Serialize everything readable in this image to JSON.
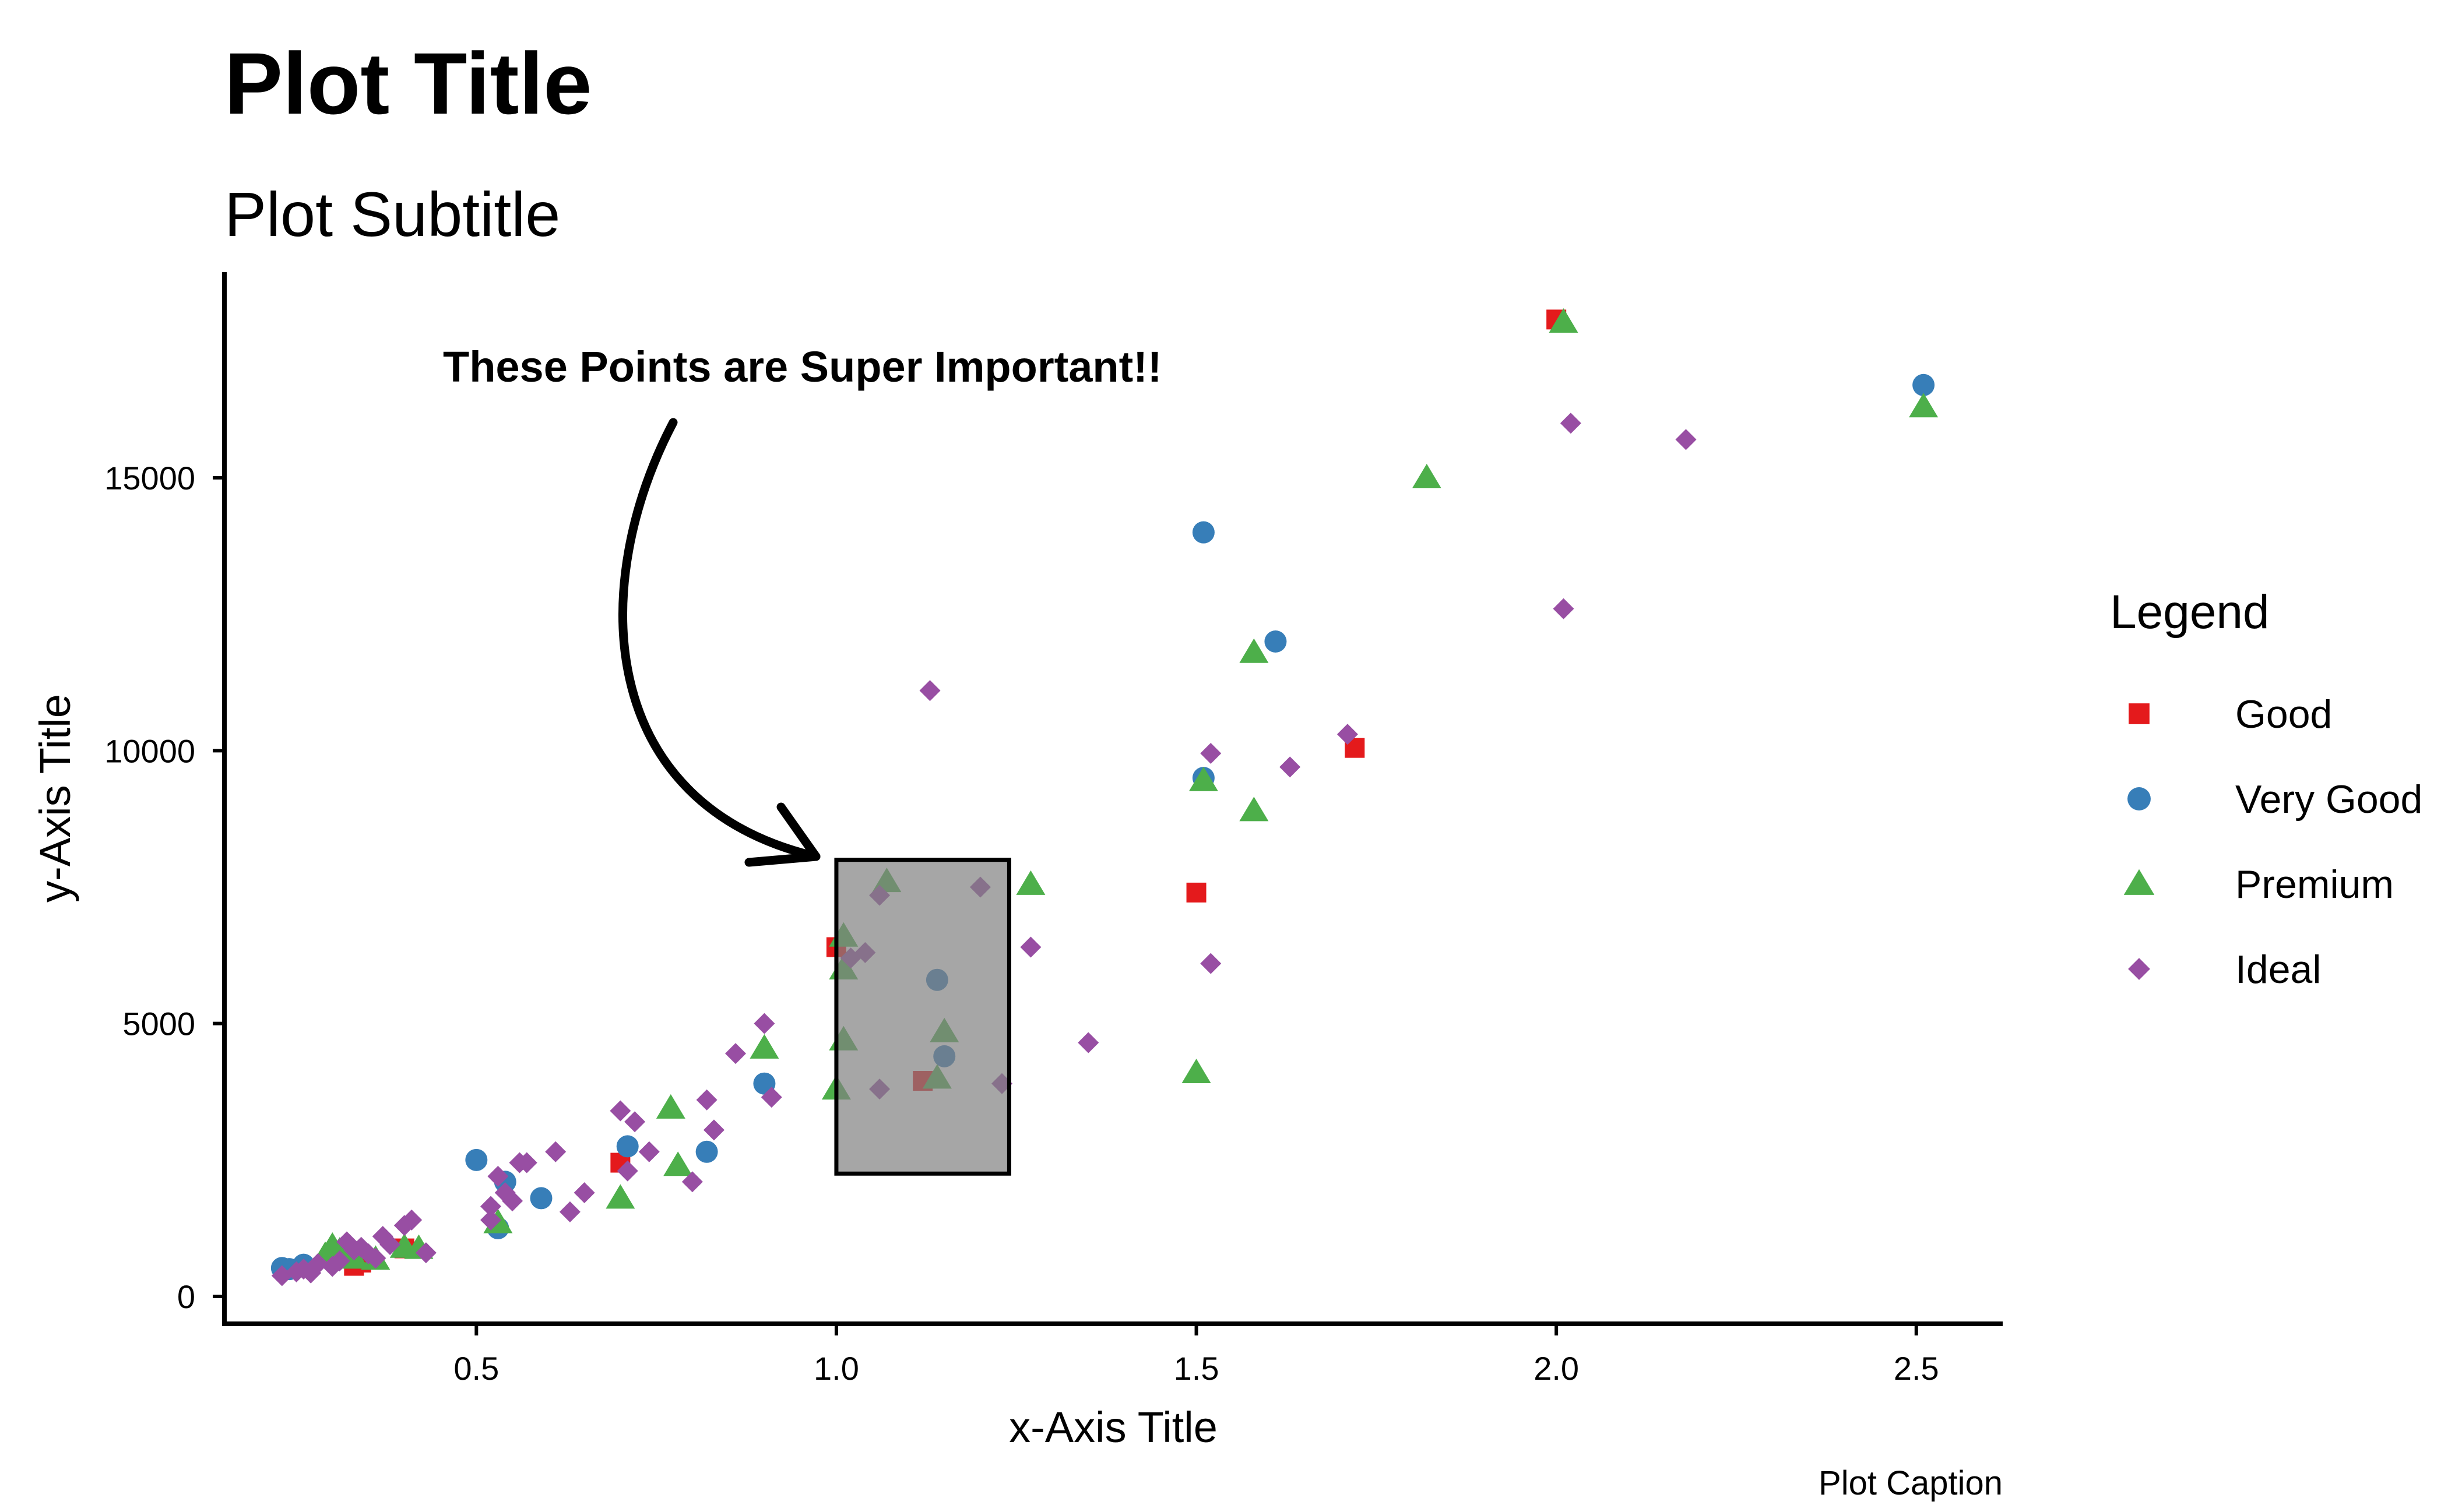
{
  "chart_data": {
    "type": "scatter",
    "title": "Plot Title",
    "subtitle": "Plot Subtitle",
    "xlabel": "x-Axis Title",
    "ylabel": "y-Axis Title",
    "caption": "Plot Caption",
    "xlim": [
      0.15,
      2.62
    ],
    "ylim": [
      -520,
      18600
    ],
    "x_ticks": [
      0.5,
      1.0,
      1.5,
      2.0,
      2.5
    ],
    "x_tick_labels": [
      "0.5",
      "1.0",
      "1.5",
      "2.0",
      "2.5"
    ],
    "y_ticks": [
      0,
      5000,
      10000,
      15000
    ],
    "y_tick_labels": [
      "0",
      "5000",
      "10000",
      "15000"
    ],
    "grid": false,
    "legend": {
      "title": "Legend",
      "position": "right"
    },
    "annotation": {
      "text": "These Points are Super Important!!",
      "highlight_box": {
        "x": [
          1.0,
          1.24
        ],
        "y": [
          2250,
          8000
        ]
      }
    },
    "series": [
      {
        "name": "Good",
        "color": "#E41A1C",
        "shape": "square",
        "points": [
          [
            0.33,
            560
          ],
          [
            0.34,
            620
          ],
          [
            0.4,
            880
          ],
          [
            0.7,
            2450
          ],
          [
            1.0,
            6400
          ],
          [
            1.12,
            3950
          ],
          [
            1.5,
            7400
          ],
          [
            1.72,
            10050
          ],
          [
            2.0,
            17900
          ]
        ]
      },
      {
        "name": "Very Good",
        "color": "#377EB8",
        "shape": "circle",
        "points": [
          [
            0.23,
            520
          ],
          [
            0.24,
            500
          ],
          [
            0.26,
            580
          ],
          [
            0.5,
            2500
          ],
          [
            0.53,
            1250
          ],
          [
            0.54,
            2100
          ],
          [
            0.59,
            1800
          ],
          [
            0.71,
            2750
          ],
          [
            0.82,
            2650
          ],
          [
            0.9,
            3900
          ],
          [
            1.14,
            5800
          ],
          [
            1.15,
            4400
          ],
          [
            1.51,
            14000
          ],
          [
            1.51,
            9500
          ],
          [
            1.61,
            12000
          ],
          [
            2.51,
            16700
          ]
        ]
      },
      {
        "name": "Premium",
        "color": "#4DAF4A",
        "shape": "triangle",
        "points": [
          [
            0.29,
            750
          ],
          [
            0.3,
            920
          ],
          [
            0.31,
            830
          ],
          [
            0.33,
            700
          ],
          [
            0.36,
            680
          ],
          [
            0.4,
            900
          ],
          [
            0.42,
            880
          ],
          [
            0.53,
            1350
          ],
          [
            0.7,
            1800
          ],
          [
            0.77,
            3450
          ],
          [
            0.78,
            2400
          ],
          [
            0.9,
            4550
          ],
          [
            1.0,
            3800
          ],
          [
            1.01,
            4700
          ],
          [
            1.01,
            6000
          ],
          [
            1.01,
            6600
          ],
          [
            1.07,
            7600
          ],
          [
            1.14,
            4000
          ],
          [
            1.15,
            4850
          ],
          [
            1.27,
            7550
          ],
          [
            1.5,
            4100
          ],
          [
            1.51,
            9450
          ],
          [
            1.58,
            11800
          ],
          [
            1.58,
            8900
          ],
          [
            1.82,
            15000
          ],
          [
            2.01,
            17850
          ],
          [
            2.51,
            16300
          ]
        ]
      },
      {
        "name": "Ideal",
        "color": "#984EA3",
        "shape": "diamond",
        "points": [
          [
            0.23,
            380
          ],
          [
            0.25,
            450
          ],
          [
            0.26,
            500
          ],
          [
            0.27,
            430
          ],
          [
            0.28,
            600
          ],
          [
            0.3,
            550
          ],
          [
            0.31,
            650
          ],
          [
            0.32,
            1000
          ],
          [
            0.33,
            850
          ],
          [
            0.34,
            900
          ],
          [
            0.35,
            780
          ],
          [
            0.36,
            700
          ],
          [
            0.37,
            1100
          ],
          [
            0.38,
            950
          ],
          [
            0.4,
            1300
          ],
          [
            0.41,
            1400
          ],
          [
            0.43,
            800
          ],
          [
            0.52,
            1650
          ],
          [
            0.52,
            1400
          ],
          [
            0.53,
            2200
          ],
          [
            0.54,
            1900
          ],
          [
            0.55,
            1750
          ],
          [
            0.56,
            2450
          ],
          [
            0.57,
            2450
          ],
          [
            0.61,
            2650
          ],
          [
            0.63,
            1550
          ],
          [
            0.65,
            1900
          ],
          [
            0.7,
            3400
          ],
          [
            0.71,
            2300
          ],
          [
            0.72,
            3200
          ],
          [
            0.74,
            2650
          ],
          [
            0.8,
            2100
          ],
          [
            0.82,
            3600
          ],
          [
            0.83,
            3050
          ],
          [
            0.86,
            4450
          ],
          [
            0.9,
            5000
          ],
          [
            0.91,
            3650
          ],
          [
            1.02,
            6200
          ],
          [
            1.04,
            6300
          ],
          [
            1.06,
            3800
          ],
          [
            1.06,
            7350
          ],
          [
            1.2,
            7500
          ],
          [
            1.23,
            3900
          ],
          [
            1.27,
            6400
          ],
          [
            1.35,
            4650
          ],
          [
            1.13,
            11100
          ],
          [
            1.52,
            9950
          ],
          [
            1.52,
            6100
          ],
          [
            1.63,
            9700
          ],
          [
            1.71,
            10300
          ],
          [
            2.01,
            12600
          ],
          [
            2.02,
            16000
          ],
          [
            2.18,
            15700
          ]
        ]
      }
    ]
  }
}
